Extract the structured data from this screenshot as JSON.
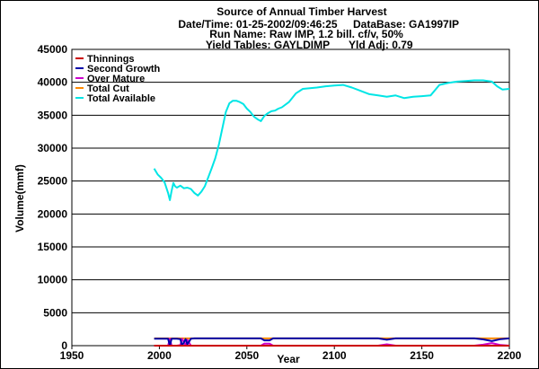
{
  "header": {
    "title": "Source of Annual Timber Harvest",
    "datetime": "Date/Time: 01-25-2002/09:46:25",
    "database": "DataBase: GA1997IP",
    "run_name": "Run Name: Raw IMP, 1.2 bill. cf/v, 50%",
    "yield_tables": "Yield Tables: GAYLDIMP",
    "yld_adj": "Yld Adj: 0.79"
  },
  "chart_data": {
    "type": "line",
    "title": "Source of Annual Timber Harvest",
    "xlabel": "Year",
    "ylabel": "Volume(mmf)",
    "xlim": [
      1950,
      2200
    ],
    "ylim": [
      0,
      45000
    ],
    "x_ticks": [
      1950,
      2000,
      2050,
      2100,
      2150,
      2200
    ],
    "y_ticks": [
      0,
      5000,
      10000,
      15000,
      20000,
      25000,
      30000,
      35000,
      40000,
      45000
    ],
    "grid": "horizontal",
    "legend_position": "top-left",
    "series": [
      {
        "name": "Thinnings",
        "color": "#cc0000",
        "x": [
          1997,
          2200
        ],
        "y": [
          0,
          0
        ]
      },
      {
        "name": "Second Growth",
        "color": "#0000aa",
        "x": [
          1997,
          2005,
          2006,
          2007,
          2010,
          2012,
          2013,
          2015,
          2016,
          2018,
          2020,
          2025,
          2050,
          2058,
          2060,
          2063,
          2065,
          2070,
          2100,
          2125,
          2130,
          2135,
          2140,
          2180,
          2185,
          2190,
          2195,
          2200
        ],
        "y": [
          1050,
          1050,
          0,
          1050,
          1050,
          1000,
          0,
          1000,
          200,
          1050,
          1100,
          1100,
          1100,
          1100,
          800,
          800,
          1100,
          1100,
          1100,
          1100,
          900,
          1100,
          1100,
          1100,
          950,
          700,
          1000,
          1100
        ]
      },
      {
        "name": "Over Mature",
        "color": "#cc00cc",
        "x": [
          1997,
          2005,
          2006,
          2007,
          2010,
          2012,
          2013,
          2015,
          2016,
          2018,
          2020,
          2025,
          2050,
          2058,
          2060,
          2063,
          2065,
          2070,
          2100,
          2125,
          2130,
          2135,
          2140,
          2180,
          2185,
          2190,
          2195,
          2200
        ],
        "y": [
          0,
          0,
          1050,
          0,
          0,
          100,
          1050,
          100,
          900,
          0,
          0,
          0,
          0,
          0,
          300,
          300,
          0,
          0,
          0,
          0,
          200,
          0,
          0,
          0,
          150,
          400,
          100,
          0
        ]
      },
      {
        "name": "Total Cut",
        "color": "#ff8800",
        "x": [
          1997,
          2200
        ],
        "y": [
          1100,
          1100
        ]
      },
      {
        "name": "Total Available",
        "color": "#00e5e5",
        "x": [
          1997,
          1999,
          2001,
          2003,
          2005,
          2006,
          2007,
          2008,
          2009,
          2010,
          2012,
          2014,
          2016,
          2018,
          2020,
          2022,
          2024,
          2026,
          2028,
          2030,
          2032,
          2034,
          2036,
          2038,
          2040,
          2042,
          2044,
          2046,
          2048,
          2050,
          2052,
          2054,
          2056,
          2058,
          2060,
          2062,
          2064,
          2066,
          2068,
          2070,
          2074,
          2078,
          2082,
          2086,
          2090,
          2095,
          2100,
          2105,
          2110,
          2115,
          2120,
          2125,
          2130,
          2135,
          2140,
          2145,
          2150,
          2155,
          2160,
          2165,
          2170,
          2175,
          2180,
          2185,
          2190,
          2193,
          2196,
          2200
        ],
        "y": [
          26900,
          26000,
          25500,
          24800,
          23200,
          22100,
          23500,
          24700,
          24200,
          24000,
          24300,
          23900,
          24000,
          23800,
          23200,
          22800,
          23400,
          24200,
          25600,
          27000,
          28500,
          30500,
          33000,
          35500,
          36800,
          37200,
          37200,
          37000,
          36700,
          36000,
          35500,
          34800,
          34400,
          34100,
          34900,
          35300,
          35600,
          35700,
          36000,
          36200,
          37000,
          38300,
          39000,
          39100,
          39200,
          39400,
          39500,
          39600,
          39200,
          38700,
          38200,
          38000,
          37800,
          38000,
          37600,
          37800,
          37900,
          38000,
          39600,
          39900,
          40100,
          40200,
          40300,
          40300,
          40100,
          39400,
          38900,
          39000
        ]
      }
    ]
  }
}
